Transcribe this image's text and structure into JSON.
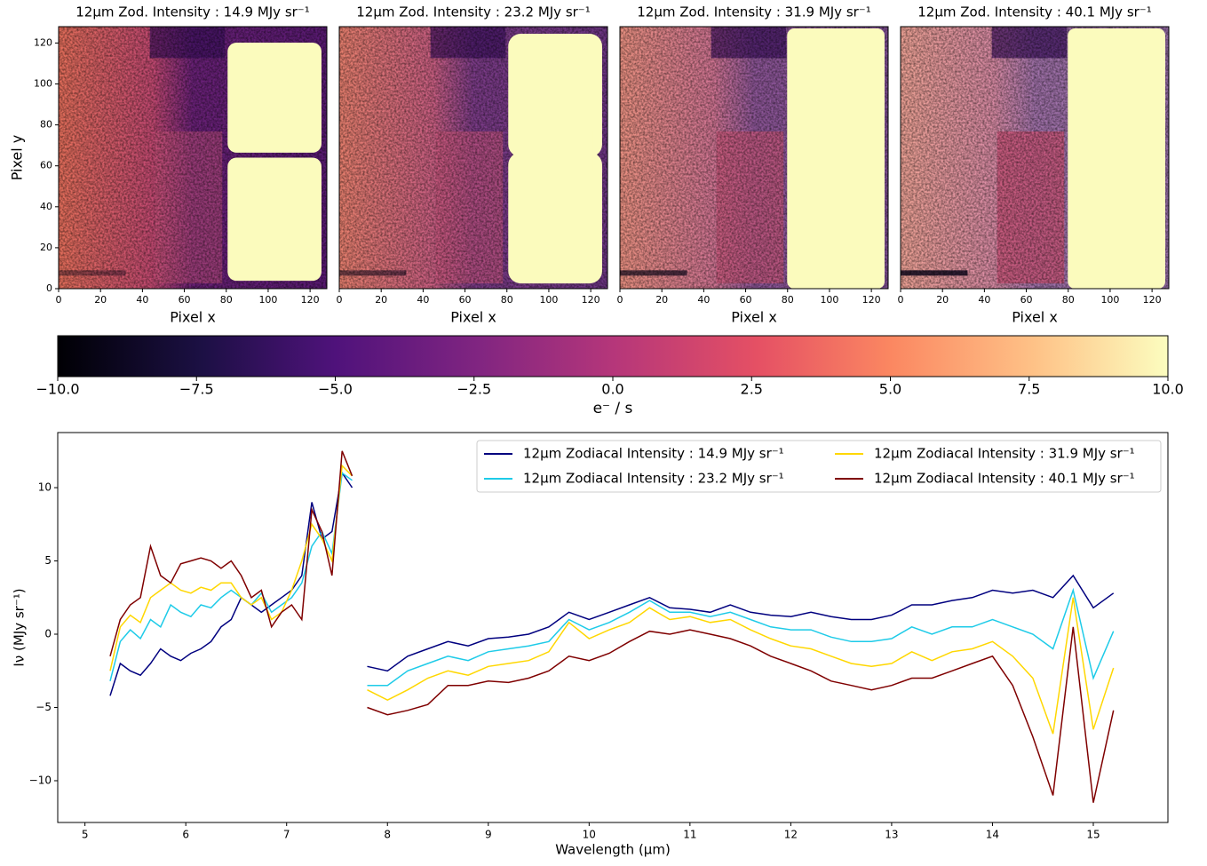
{
  "chart_data": [
    {
      "type": "heatmap",
      "title": "12μm Zod. Intensity : 14.9 MJy sr⁻¹",
      "xlabel": "Pixel x",
      "ylabel": "Pixel y",
      "xlim": [
        0,
        128
      ],
      "ylim": [
        0,
        128
      ],
      "xticks": [
        0,
        20,
        40,
        60,
        80,
        100,
        120
      ],
      "yticks": [
        0,
        20,
        40,
        60,
        80,
        100,
        120
      ]
    },
    {
      "type": "heatmap",
      "title": "12μm Zod. Intensity : 23.2 MJy sr⁻¹",
      "xlabel": "Pixel x",
      "xlim": [
        0,
        128
      ],
      "ylim": [
        0,
        128
      ],
      "xticks": [
        0,
        20,
        40,
        60,
        80,
        100,
        120
      ]
    },
    {
      "type": "heatmap",
      "title": "12μm Zod. Intensity : 31.9 MJy sr⁻¹",
      "xlabel": "Pixel x",
      "xlim": [
        0,
        128
      ],
      "ylim": [
        0,
        128
      ],
      "xticks": [
        0,
        20,
        40,
        60,
        80,
        100,
        120
      ]
    },
    {
      "type": "heatmap",
      "title": "12μm Zod. Intensity : 40.1 MJy sr⁻¹",
      "xlabel": "Pixel x",
      "xlim": [
        0,
        128
      ],
      "ylim": [
        0,
        128
      ],
      "xticks": [
        0,
        20,
        40,
        60,
        80,
        100,
        120
      ]
    },
    {
      "type": "colorbar",
      "label": "e⁻ / s",
      "lim": [
        -10,
        10
      ],
      "ticks": [
        {
          "value": -10,
          "label": "−10.0"
        },
        {
          "value": -7.5,
          "label": "−7.5"
        },
        {
          "value": -5,
          "label": "−5.0"
        },
        {
          "value": -2.5,
          "label": "−2.5"
        },
        {
          "value": 0,
          "label": "0.0"
        },
        2.5,
        {
          "value": 5,
          "label": "5.0"
        },
        7.5,
        {
          "value": 10,
          "label": "10.0"
        }
      ]
    },
    {
      "type": "line",
      "xlabel": "Wavelength (μm)",
      "ylabel": "Iν (MJy sr⁻¹)",
      "legend": "upper right",
      "xlim": [
        4.73,
        15.74
      ],
      "ylim": [
        -12.85,
        13.76
      ],
      "xticks": [
        5,
        6,
        7,
        8,
        9,
        10,
        11,
        12,
        13,
        14,
        15
      ],
      "yticks": [
        {
          "value": -10,
          "label": "−10"
        },
        {
          "value": -5,
          "label": "−5"
        },
        0,
        5,
        10
      ],
      "x": [
        5.25,
        5.35,
        5.45,
        5.55,
        5.65,
        5.75,
        5.85,
        5.95,
        6.05,
        6.15,
        6.25,
        6.35,
        6.45,
        6.55,
        6.65,
        6.75,
        6.85,
        6.95,
        7.05,
        7.15,
        7.25,
        7.35,
        7.45,
        7.55,
        7.65,
        7.72,
        7.8,
        8.0,
        8.2,
        8.4,
        8.6,
        8.8,
        9.0,
        9.2,
        9.4,
        9.6,
        9.8,
        10.0,
        10.2,
        10.4,
        10.6,
        10.8,
        11.0,
        11.2,
        11.4,
        11.6,
        11.8,
        12.0,
        12.2,
        12.4,
        12.6,
        12.8,
        13.0,
        13.2,
        13.4,
        13.6,
        13.8,
        14.0,
        14.2,
        14.4,
        14.6,
        14.8,
        15.0,
        15.2
      ],
      "series": [
        {
          "name": "12μm Zodiacal Intensity : 14.9 MJy sr⁻¹",
          "color": "#00007f",
          "values": [
            -4.2,
            -2.0,
            -2.5,
            -2.8,
            -2.0,
            -1.0,
            -1.5,
            -1.8,
            -1.3,
            -1.0,
            -0.5,
            0.5,
            1.0,
            2.5,
            2.0,
            1.5,
            2.0,
            2.5,
            3.0,
            4.0,
            9.0,
            6.5,
            7.0,
            11.0,
            10.0,
            null,
            -2.2,
            -2.5,
            -1.5,
            -1.0,
            -0.5,
            -0.8,
            -0.3,
            -0.2,
            0.0,
            0.5,
            1.5,
            1.0,
            1.5,
            2.0,
            2.5,
            1.8,
            1.7,
            1.5,
            2.0,
            1.5,
            1.3,
            1.2,
            1.5,
            1.2,
            1.0,
            1.0,
            1.3,
            2.0,
            2.0,
            2.3,
            2.5,
            3.0,
            2.8,
            3.0,
            2.5,
            4.0,
            1.8,
            2.8
          ]
        },
        {
          "name": "12μm Zodiacal Intensity : 23.2 MJy sr⁻¹",
          "color": "#1ecbe8",
          "values": [
            -3.2,
            -0.5,
            0.3,
            -0.3,
            1.0,
            0.5,
            2.0,
            1.5,
            1.2,
            2.0,
            1.8,
            2.5,
            3.0,
            2.5,
            2.0,
            2.8,
            1.5,
            2.0,
            2.5,
            3.5,
            6.0,
            7.0,
            5.5,
            11.0,
            10.5,
            null,
            -3.5,
            -3.5,
            -2.5,
            -2.0,
            -1.5,
            -1.8,
            -1.2,
            -1.0,
            -0.8,
            -0.5,
            1.0,
            0.3,
            0.8,
            1.5,
            2.3,
            1.5,
            1.5,
            1.2,
            1.5,
            1.0,
            0.5,
            0.3,
            0.3,
            -0.2,
            -0.5,
            -0.5,
            -0.3,
            0.5,
            0.0,
            0.5,
            0.5,
            1.0,
            0.5,
            0.0,
            -1.0,
            3.0,
            -3.0,
            0.2
          ]
        },
        {
          "name": "12μm Zodiacal Intensity : 31.9 MJy sr⁻¹",
          "color": "#ffd700",
          "values": [
            -2.5,
            0.5,
            1.3,
            0.8,
            2.5,
            3.0,
            3.5,
            3.0,
            2.8,
            3.2,
            3.0,
            3.5,
            3.5,
            2.5,
            2.0,
            2.5,
            1.0,
            1.5,
            3.0,
            5.0,
            7.5,
            6.5,
            5.0,
            11.5,
            10.8,
            null,
            -3.8,
            -4.5,
            -3.8,
            -3.0,
            -2.5,
            -2.8,
            -2.2,
            -2.0,
            -1.8,
            -1.2,
            0.8,
            -0.3,
            0.3,
            0.8,
            1.8,
            1.0,
            1.2,
            0.8,
            1.0,
            0.3,
            -0.3,
            -0.8,
            -1.0,
            -1.5,
            -2.0,
            -2.2,
            -2.0,
            -1.2,
            -1.8,
            -1.2,
            -1.0,
            -0.5,
            -1.5,
            -3.0,
            -6.8,
            2.5,
            -6.5,
            -2.3
          ]
        },
        {
          "name": "12μm Zodiacal Intensity : 40.1 MJy sr⁻¹",
          "color": "#7f0000",
          "values": [
            -1.5,
            1.0,
            2.0,
            2.5,
            6.0,
            4.0,
            3.5,
            4.8,
            5.0,
            5.2,
            5.0,
            4.5,
            5.0,
            4.0,
            2.5,
            3.0,
            0.5,
            1.5,
            2.0,
            1.0,
            8.5,
            7.0,
            4.0,
            12.5,
            10.8,
            null,
            -5.0,
            -5.5,
            -5.2,
            -4.8,
            -3.5,
            -3.5,
            -3.2,
            -3.3,
            -3.0,
            -2.5,
            -1.5,
            -1.8,
            -1.3,
            -0.5,
            0.2,
            0.0,
            0.3,
            0.0,
            -0.3,
            -0.8,
            -1.5,
            -2.0,
            -2.5,
            -3.2,
            -3.5,
            -3.8,
            -3.5,
            -3.0,
            -3.0,
            -2.5,
            -2.0,
            -1.5,
            -3.5,
            -7.0,
            -11.0,
            0.5,
            -11.5,
            -5.2
          ]
        }
      ]
    }
  ]
}
